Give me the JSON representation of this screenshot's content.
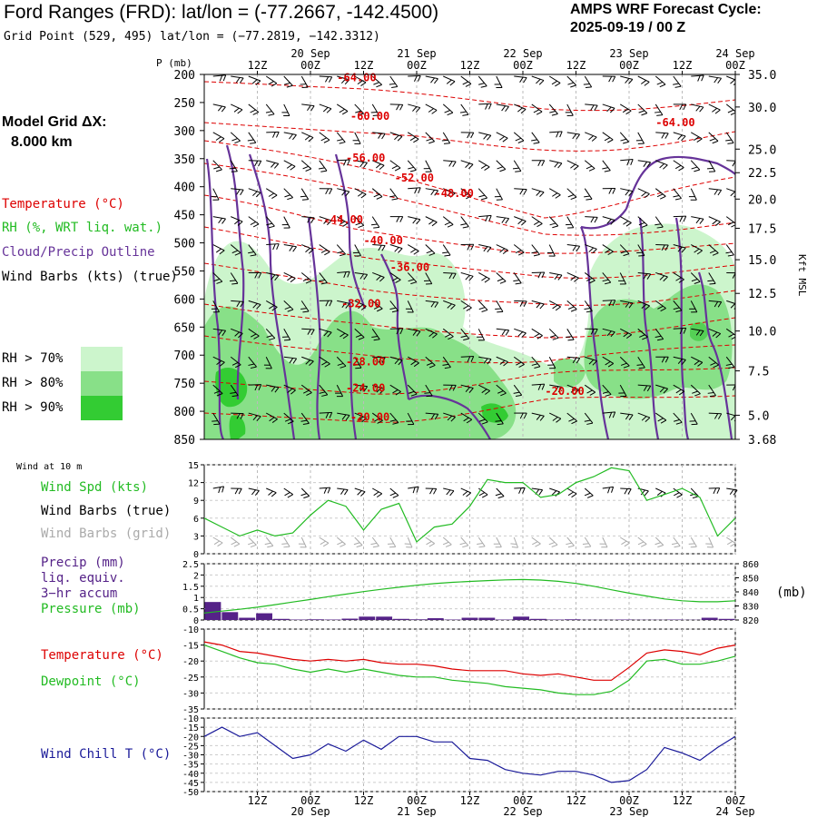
{
  "header": {
    "title": "Ford Ranges (FRD):  lat/lon = (-77.2667, -142.4500)",
    "subtitle": "Grid Point (529, 495) lat/lon = (−77.2819, −142.3312)",
    "cycle_label": "AMPS WRF Forecast Cycle:",
    "cycle_value": "2025-09-19 / 00  Z"
  },
  "side": {
    "grid_label": "Model Grid ΔX:",
    "grid_value": "8.000 km",
    "legend_temperature": "Temperature (°C)",
    "legend_rh": "RH (%, WRT liq. wat.)",
    "legend_cloud": "Cloud/Precip Outline",
    "legend_wind": "Wind Barbs (kts) (true)",
    "rh_levels": [
      "RH > 70%",
      "RH > 80%",
      "RH > 90%"
    ],
    "panel2_small": "Wind at 10 m",
    "panel2_spd": "Wind Spd (kts)",
    "panel2_barbs": "Wind Barbs (true)",
    "panel2_grid": "Wind Barbs (grid)",
    "panel3_precip": "Precip (mm)",
    "panel3_liq": "liq. equiv.",
    "panel3_accum": "3−hr accum",
    "panel3_press": "Pressure (mb)",
    "panel3_unit": "(mb)",
    "panel4_temp": "Temperature (°C)",
    "panel4_dew": "Dewpoint (°C)",
    "panel5_chill": "Wind Chill T (°C)"
  },
  "colors": {
    "temperature": "#dd0000",
    "rh": "#22bb22",
    "cloud": "#663399",
    "wind": "#000000",
    "wind_grid": "#aaaaaa",
    "dewpoint": "#22bb22",
    "windchill": "#1a1a99",
    "precip": "#552288",
    "rh70": "#ccf5cc",
    "rh80": "#88e088",
    "rh90": "#33cc33"
  },
  "time_axis": {
    "top_labels": [
      {
        "t": 12,
        "hour": "12Z",
        "date": ""
      },
      {
        "t": 24,
        "hour": "00Z",
        "date": "20 Sep"
      },
      {
        "t": 36,
        "hour": "12Z",
        "date": ""
      },
      {
        "t": 48,
        "hour": "00Z",
        "date": "21 Sep"
      },
      {
        "t": 60,
        "hour": "12Z",
        "date": ""
      },
      {
        "t": 72,
        "hour": "00Z",
        "date": "22 Sep"
      },
      {
        "t": 84,
        "hour": "12Z",
        "date": ""
      },
      {
        "t": 96,
        "hour": "00Z",
        "date": "23 Sep"
      },
      {
        "t": 108,
        "hour": "12Z",
        "date": ""
      },
      {
        "t": 120,
        "hour": "00Z",
        "date": "24 Sep"
      }
    ],
    "bottom_labels": [
      {
        "t": 12,
        "hour": "12Z",
        "date": ""
      },
      {
        "t": 24,
        "hour": "00Z",
        "date": "20 Sep"
      },
      {
        "t": 36,
        "hour": "12Z",
        "date": ""
      },
      {
        "t": 48,
        "hour": "00Z",
        "date": "21 Sep"
      },
      {
        "t": 60,
        "hour": "12Z",
        "date": ""
      },
      {
        "t": 72,
        "hour": "00Z",
        "date": "22 Sep"
      },
      {
        "t": 84,
        "hour": "12Z",
        "date": ""
      },
      {
        "t": 96,
        "hour": "00Z",
        "date": "23 Sep"
      },
      {
        "t": 108,
        "hour": "12Z",
        "date": ""
      },
      {
        "t": 120,
        "hour": "00Z",
        "date": "24 Sep"
      }
    ],
    "range_hours": [
      0,
      120
    ]
  },
  "chart_data": [
    {
      "type": "heatmap",
      "ylabel": "P (mb)",
      "ylabel_right": "Kft MSL",
      "y_ticks_left": [
        "200",
        "250",
        "300",
        "350",
        "400",
        "450",
        "500",
        "550",
        "600",
        "650",
        "700",
        "750",
        "800",
        "850"
      ],
      "y_ticks_right": [
        {
          "p": 200,
          "label": "35.0"
        },
        {
          "p": 258,
          "label": "30.0"
        },
        {
          "p": 333,
          "label": "25.0"
        },
        {
          "p": 375,
          "label": "22.5"
        },
        {
          "p": 422,
          "label": "20.0"
        },
        {
          "p": 474,
          "label": "17.5"
        },
        {
          "p": 530,
          "label": "15.0"
        },
        {
          "p": 590,
          "label": "12.5"
        },
        {
          "p": 657,
          "label": "10.0"
        },
        {
          "p": 728,
          "label": "7.5"
        },
        {
          "p": 807,
          "label": "5.0"
        },
        {
          "p": 850,
          "label": "3.68"
        }
      ],
      "ylim": [
        200,
        850
      ],
      "temperature_labels": [
        {
          "t": 30,
          "p": 212,
          "label": "-64.00"
        },
        {
          "t": 33,
          "p": 281,
          "label": "-60.00"
        },
        {
          "t": 32,
          "p": 355,
          "label": "-56.00"
        },
        {
          "t": 43,
          "p": 391,
          "label": "-52.00"
        },
        {
          "t": 52,
          "p": 418,
          "label": "-48.00"
        },
        {
          "t": 27,
          "p": 465,
          "label": "-44.00"
        },
        {
          "t": 36,
          "p": 502,
          "label": "-40.00"
        },
        {
          "t": 42,
          "p": 550,
          "label": "-36.00"
        },
        {
          "t": 31,
          "p": 615,
          "label": "-32.00"
        },
        {
          "t": 32,
          "p": 718,
          "label": "-28.00"
        },
        {
          "t": 32,
          "p": 765,
          "label": "-24.00"
        },
        {
          "t": 33,
          "p": 817,
          "label": "-20.00"
        },
        {
          "t": 102,
          "p": 292,
          "label": "-64.00"
        },
        {
          "t": 77,
          "p": 771,
          "label": "-20.00"
        }
      ]
    },
    {
      "type": "line",
      "ylabel": "Wind Spd (kts)",
      "ylim": [
        0,
        15
      ],
      "y_ticks": [
        0,
        3,
        6,
        9,
        12,
        15
      ],
      "series": [
        {
          "values": [
            6,
            4.5,
            3,
            4,
            3,
            3.5,
            6.5,
            9,
            8,
            4,
            7.5,
            8.5,
            2,
            4.5,
            5,
            8,
            12.5,
            12,
            12,
            9.5,
            10,
            12,
            13,
            14.5,
            14,
            9,
            10,
            11,
            9.5,
            3,
            6
          ]
        }
      ]
    },
    {
      "type": "bar",
      "ylabel": "Precip (mm)",
      "ylim": [
        0,
        2.5
      ],
      "y_ticks": [
        0,
        0.5,
        1,
        1.5,
        2,
        2.5
      ],
      "values": [
        0.8,
        0.35,
        0.1,
        0.3,
        0.05,
        0.02,
        0.03,
        0.02,
        0.06,
        0.15,
        0.15,
        0.05,
        0.03,
        0.08,
        0.02,
        0.1,
        0.1,
        0.02,
        0.15,
        0.05,
        0.02,
        0.03,
        0.01,
        0.01,
        0.02,
        0.01,
        0.01,
        0.02,
        0.01,
        0.1,
        0.05
      ]
    },
    {
      "type": "line",
      "ylabel": "Pressure (mb)",
      "ylim": [
        820,
        860
      ],
      "y_ticks": [
        820,
        830,
        840,
        850,
        860
      ],
      "series": [
        {
          "values": [
            825.0,
            826.3,
            827.6,
            829.1,
            830.9,
            832.8,
            834.6,
            836.6,
            838.4,
            840.2,
            841.8,
            843.3,
            844.7,
            845.9,
            846.8,
            847.4,
            848.0,
            848.5,
            848.8,
            848.4,
            847.5,
            846.0,
            844.0,
            841.5,
            839.1,
            837.0,
            835.0,
            833.7,
            833.0,
            833.0,
            833.7
          ]
        }
      ]
    },
    {
      "type": "line",
      "ylabel": "Temperature (°C)",
      "ylim": [
        -35,
        -10
      ],
      "y_ticks": [
        -35,
        -30,
        -25,
        -20,
        -15,
        -10
      ],
      "series": [
        {
          "name": "Temperature (°C)",
          "values": [
            -14,
            -15,
            -17,
            -17.5,
            -18.5,
            -19.5,
            -20,
            -19.5,
            -20,
            -19.5,
            -20.5,
            -21,
            -21,
            -21.5,
            -22.5,
            -23,
            -23,
            -23,
            -24,
            -24.5,
            -24,
            -25,
            -26,
            -26,
            -22,
            -17.5,
            -16.5,
            -17,
            -18,
            -16,
            -15
          ]
        },
        {
          "name": "Dewpoint (°C)",
          "values": [
            -15,
            -17,
            -19,
            -20.5,
            -21,
            -22.5,
            -23.5,
            -22.5,
            -23.5,
            -22.5,
            -23.5,
            -24.5,
            -25,
            -25,
            -26,
            -26.5,
            -27,
            -28,
            -28.5,
            -29,
            -30,
            -30.5,
            -30.5,
            -29.5,
            -26,
            -20,
            -19.5,
            -21,
            -21,
            -20,
            -18.5
          ]
        }
      ]
    },
    {
      "type": "line",
      "ylabel": "Wind Chill T (°C)",
      "ylim": [
        -50,
        -10
      ],
      "y_ticks": [
        -50,
        -45,
        -40,
        -35,
        -30,
        -25,
        -20,
        -15,
        -10
      ],
      "series": [
        {
          "name": "Wind Chill T (°C)",
          "values": [
            -20,
            -15,
            -20,
            -18,
            -25,
            -32,
            -30,
            -24,
            -28,
            -22,
            -27,
            -20,
            -20,
            -23,
            -23,
            -32,
            -33,
            -38,
            -40,
            -41,
            -39,
            -39,
            -41,
            -45,
            -44,
            -38,
            -26,
            -29,
            -33,
            -26,
            -20
          ]
        }
      ]
    }
  ]
}
